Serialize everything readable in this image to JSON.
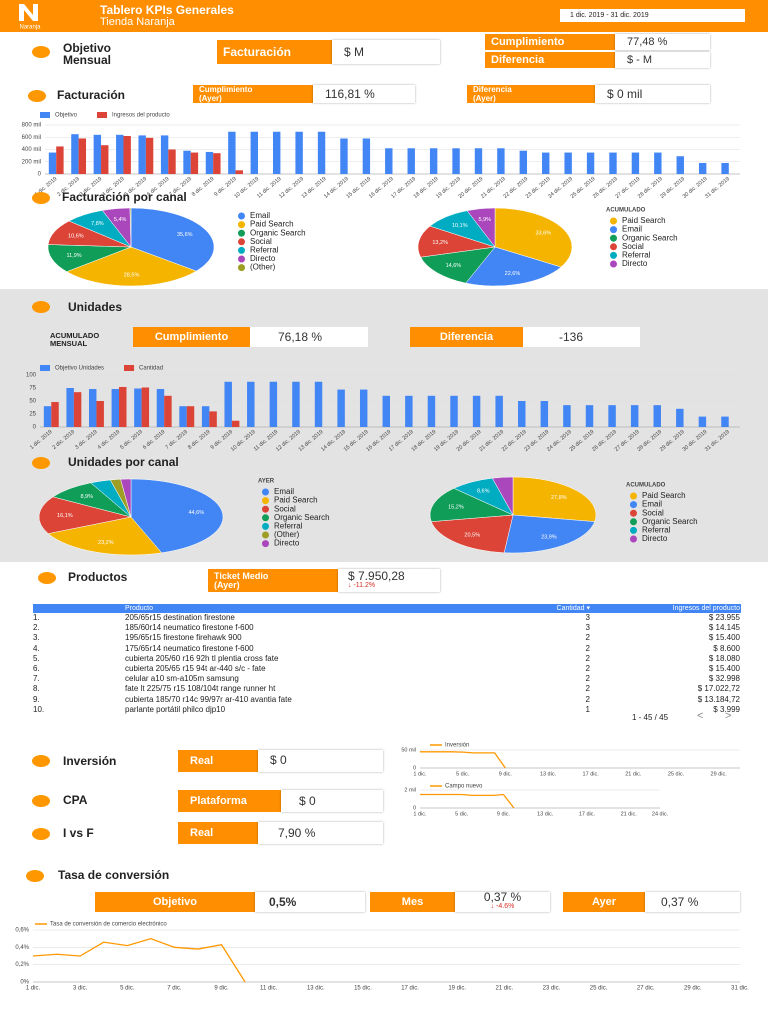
{
  "header": {
    "logo": "Naranja",
    "title": "Tablero KPIs Generales",
    "subtitle": "Tienda Naranja",
    "date_range": "1 dic. 2019 - 31 dic. 2019"
  },
  "objetivo": {
    "label": "Objetivo\nMensual",
    "facturacion_label": "Facturación",
    "facturacion_value": "$ M",
    "cumplimiento_label": "Cumplimiento",
    "cumplimiento_value": "77,48 %",
    "diferencia_label": "Diferencia",
    "diferencia_value": "$ - M"
  },
  "facturacion": {
    "label": "Facturación",
    "cumplimiento_label": "Cumplimiento\n(Ayer)",
    "cumplimiento_value": "116,81 %",
    "diferencia_label": "Diferencia\n(Ayer)",
    "diferencia_value": "$ 0 mil"
  },
  "facturacion_canal": {
    "label": "Facturación por canal"
  },
  "unidades": {
    "label": "Unidades",
    "acumulado": "ACUMULADO\nMENSUAL",
    "cumplimiento_label": "Cumplimiento",
    "cumplimiento_value": "76,18 %",
    "diferencia_label": "Diferencia",
    "diferencia_value": "-136"
  },
  "unidades_canal": {
    "label": "Unidades por canal"
  },
  "productos": {
    "label": "Productos",
    "ticket_label": "Ticket Medio\n(Ayer)",
    "ticket_value": "$ 7.950,28",
    "ticket_change": "↓ -11.2%",
    "table": {
      "columns": [
        "Producto",
        "Cantidad ▾",
        "Ingresos del producto"
      ],
      "rows": [
        [
          "1.",
          "205/65r15 destination firestone",
          3,
          "$ 23.955"
        ],
        [
          "2.",
          "185/60r14 neumatico firestone f-600",
          3,
          "$ 14.145"
        ],
        [
          "3.",
          "195/65r15 firestone firehawk 900",
          2,
          "$ 15.400"
        ],
        [
          "4.",
          "175/65r14 neumatico firestone f-600",
          2,
          "$ 8.600"
        ],
        [
          "5.",
          "cubierta 205/60 r16 92h tl plentia cross fate",
          2,
          "$ 18.080"
        ],
        [
          "6.",
          "cubierta 205/65 r15 94t ar-440 s/c - fate",
          2,
          "$ 15.400"
        ],
        [
          "7.",
          "celular a10 sm-a105m samsung",
          2,
          "$ 32.998"
        ],
        [
          "8.",
          "fate lt 225/75 r15 108/104t range runner ht",
          2,
          "$ 17.022,72"
        ],
        [
          "9.",
          "cubierta 185/70 r14c 99/97r ar-410 avantia fate",
          2,
          "$ 13.184,72"
        ],
        [
          "10.",
          "parlante portátil philco djp10",
          1,
          "$ 3.999"
        ]
      ],
      "pagination": "1 - 45 / 45"
    }
  },
  "inversion": {
    "label": "Inversión",
    "kpi_label": "Real",
    "kpi_value": "$ 0"
  },
  "cpa": {
    "label": "CPA",
    "kpi_label": "Plataforma",
    "kpi_value": "$ 0"
  },
  "ivsf": {
    "label": "I vs F",
    "kpi_label": "Real",
    "kpi_value": "7,90 %"
  },
  "tasa": {
    "label": "Tasa de conversión",
    "objetivo_label": "Objetivo",
    "objetivo_value": "0,5%",
    "mes_label": "Mes",
    "mes_value": "0,37 %",
    "mes_change": "↓ -4.6%",
    "ayer_label": "Ayer",
    "ayer_value": "0,37 %"
  },
  "chart_data": [
    {
      "type": "bar",
      "categories": [
        "1 dic. 2019",
        "2 dic. 2019",
        "3 dic. 2019",
        "4 dic. 2019",
        "5 dic. 2019",
        "6 dic. 2019",
        "7 dic. 2019",
        "8 dic. 2019",
        "9 dic. 2019",
        "10 dic. 2019",
        "11 dic. 2019",
        "12 dic. 2019",
        "13 dic. 2019",
        "14 dic. 2019",
        "15 dic. 2019",
        "16 dic. 2019",
        "17 dic. 2019",
        "18 dic. 2019",
        "19 dic. 2019",
        "20 dic. 2019",
        "21 dic. 2019",
        "22 dic. 2019",
        "23 dic. 2019",
        "24 dic. 2019",
        "25 dic. 2019",
        "26 dic. 2019",
        "27 dic. 2019",
        "28 dic. 2019",
        "29 dic. 2019",
        "30 dic. 2019",
        "31 dic. 2019"
      ],
      "series": [
        {
          "name": "Objetivo",
          "color": "#4285f4",
          "values": [
            350000,
            650000,
            640000,
            640000,
            630000,
            630000,
            380000,
            360000,
            690000,
            690000,
            690000,
            690000,
            690000,
            580000,
            580000,
            420000,
            420000,
            420000,
            420000,
            420000,
            420000,
            380000,
            350000,
            350000,
            350000,
            350000,
            350000,
            350000,
            290000,
            180000,
            180000
          ]
        },
        {
          "name": "Ingresos del producto",
          "color": "#db4437",
          "values": [
            450000,
            580000,
            470000,
            620000,
            590000,
            400000,
            350000,
            340000,
            60000,
            0,
            0,
            0,
            0,
            0,
            0,
            0,
            0,
            0,
            0,
            0,
            0,
            0,
            0,
            0,
            0,
            0,
            0,
            0,
            0,
            0,
            0
          ]
        }
      ],
      "ylim": [
        0,
        800000
      ],
      "yticks": [
        0,
        {
          "value": 200000,
          "label": "200 mil"
        },
        {
          "value": 400000,
          "label": "400 mil"
        },
        {
          "value": 600000,
          "label": "600 mil"
        },
        {
          "value": 800000,
          "label": "800 mil"
        }
      ],
      "grid": true
    },
    {
      "type": "pie",
      "categories": [
        "Email",
        "Paid Search",
        "Organic Search",
        "Social",
        "Referral",
        "Directo",
        "(Other)"
      ],
      "values": [
        35.6,
        28.5,
        11.9,
        10.6,
        7.8,
        5.4,
        0.2
      ],
      "value_labels": [
        "35,6%",
        "28,5%",
        "11,9%",
        "10,6%",
        "7,8%",
        "5,4%",
        null
      ],
      "colors": [
        "#4285f4",
        "#f4b400",
        "#0f9d58",
        "#db4437",
        "#00acc1",
        "#ab47bc",
        "#9e9d24"
      ]
    },
    {
      "type": "pie",
      "title": "ACUMULADO",
      "categories": [
        "Paid Search",
        "Email",
        "Organic Search",
        "Social",
        "Referral",
        "Directo"
      ],
      "values": [
        33.6,
        22.6,
        14.6,
        13.2,
        10.1,
        5.9
      ],
      "value_labels": [
        "33,6%",
        "22,6%",
        "14,6%",
        "13,2%",
        "10,1%",
        "5,9%"
      ],
      "colors": [
        "#f4b400",
        "#4285f4",
        "#0f9d58",
        "#db4437",
        "#00acc1",
        "#ab47bc"
      ]
    },
    {
      "type": "bar",
      "categories": [
        "1 dic. 2019",
        "2 dic. 2019",
        "3 dic. 2019",
        "4 dic. 2019",
        "5 dic. 2019",
        "6 dic. 2019",
        "7 dic. 2019",
        "8 dic. 2019",
        "9 dic. 2019",
        "10 dic. 2019",
        "11 dic. 2019",
        "12 dic. 2019",
        "13 dic. 2019",
        "14 dic. 2019",
        "15 dic. 2019",
        "16 dic. 2019",
        "17 dic. 2019",
        "18 dic. 2019",
        "19 dic. 2019",
        "20 dic. 2019",
        "21 dic. 2019",
        "22 dic. 2019",
        "23 dic. 2019",
        "24 dic. 2019",
        "25 dic. 2019",
        "26 dic. 2019",
        "27 dic. 2019",
        "28 dic. 2019",
        "29 dic. 2019",
        "30 dic. 2019",
        "31 dic. 2019"
      ],
      "series": [
        {
          "name": "Objetivo Unidades",
          "color": "#4285f4",
          "values": [
            40,
            75,
            73,
            73,
            74,
            73,
            40,
            40,
            87,
            87,
            87,
            87,
            87,
            72,
            72,
            60,
            60,
            60,
            60,
            60,
            60,
            50,
            50,
            42,
            42,
            42,
            42,
            42,
            35,
            20,
            20
          ]
        },
        {
          "name": "Cantidad",
          "color": "#db4437",
          "values": [
            48,
            67,
            50,
            77,
            76,
            60,
            40,
            30,
            12,
            0,
            0,
            0,
            0,
            0,
            0,
            0,
            0,
            0,
            0,
            0,
            0,
            0,
            0,
            0,
            0,
            0,
            0,
            0,
            0,
            0,
            0
          ]
        }
      ],
      "ylim": [
        0,
        100
      ],
      "yticks": [
        0,
        25,
        50,
        75,
        100
      ],
      "grid": true
    },
    {
      "type": "pie",
      "title": "AYER",
      "categories": [
        "Email",
        "Paid Search",
        "Social",
        "Organic Search",
        "Referral",
        "(Other)",
        "Directo"
      ],
      "values": [
        44.6,
        23.2,
        16.1,
        8.9,
        3.6,
        1.8,
        1.8
      ],
      "value_labels": [
        "44,6%",
        "23,2%",
        "16,1%",
        "8,9%",
        null,
        null,
        null
      ],
      "colors": [
        "#4285f4",
        "#f4b400",
        "#db4437",
        "#0f9d58",
        "#00acc1",
        "#9e9d24",
        "#ab47bc"
      ]
    },
    {
      "type": "pie",
      "title": "ACUMULADO",
      "categories": [
        "Paid Search",
        "Email",
        "Social",
        "Organic Search",
        "Referral",
        "Directo"
      ],
      "values": [
        27.8,
        23.9,
        20.5,
        15.2,
        8.6,
        4.0
      ],
      "value_labels": [
        "27,8%",
        "23,9%",
        "20,5%",
        "15,2%",
        "8,6%",
        null
      ],
      "colors": [
        "#f4b400",
        "#4285f4",
        "#db4437",
        "#0f9d58",
        "#00acc1",
        "#ab47bc"
      ]
    },
    {
      "type": "line",
      "categories": [
        "1 dic.",
        null,
        null,
        null,
        "5 dic.",
        null,
        null,
        null,
        "9 dic.",
        null,
        null,
        null,
        "13 dic.",
        null,
        null,
        null,
        "17 dic.",
        null,
        null,
        null,
        "21 dic.",
        null,
        null,
        null,
        "25 dic.",
        null,
        null,
        null,
        "29 dic.",
        null,
        null
      ],
      "series": [
        {
          "name": "Inversión",
          "color": "#ff9800",
          "values": [
            45000,
            45000,
            45000,
            45000,
            44000,
            42000,
            42000,
            42000,
            0,
            null,
            null,
            null,
            null,
            null,
            null,
            null,
            null,
            null,
            null,
            null,
            null,
            null,
            null,
            null,
            null,
            null,
            null,
            null,
            null,
            null,
            null
          ]
        }
      ],
      "ylim": [
        0,
        50000
      ],
      "yticks": [
        0,
        {
          "value": 50000,
          "label": "50 mil"
        }
      ],
      "grid": true
    },
    {
      "type": "line",
      "categories": [
        "1 dic.",
        null,
        null,
        null,
        "5 dic.",
        null,
        null,
        null,
        "9 dic.",
        null,
        null,
        null,
        "13 dic.",
        null,
        null,
        null,
        "17 dic.",
        null,
        null,
        null,
        "21 dic.",
        null,
        null,
        "24 dic."
      ],
      "series": [
        {
          "name": "Campo nuevo",
          "color": "#ff9800",
          "values": [
            1500,
            1500,
            1500,
            1500,
            1500,
            1400,
            1400,
            1400,
            1500,
            0,
            null,
            null,
            null,
            null,
            null,
            null,
            null,
            null,
            null,
            null,
            null,
            null,
            null,
            null
          ]
        }
      ],
      "ylim": [
        0,
        2000
      ],
      "yticks": [
        0,
        {
          "value": 2000,
          "label": "2 mil"
        }
      ],
      "grid": true
    },
    {
      "type": "line",
      "categories": [
        "1 dic.",
        null,
        "3 dic.",
        null,
        "5 dic.",
        null,
        "7 dic.",
        null,
        "9 dic.",
        null,
        "11 dic.",
        null,
        "13 dic.",
        null,
        "15 dic.",
        null,
        "17 dic.",
        null,
        "19 dic.",
        null,
        "21 dic.",
        null,
        "23 dic.",
        null,
        "25 dic.",
        null,
        "27 dic.",
        null,
        "29 dic.",
        null,
        "31 dic."
      ],
      "series": [
        {
          "name": "Tasa de conversión de comercio electrónico",
          "color": "#ff9800",
          "values": [
            0.3,
            0.32,
            0.3,
            0.46,
            0.42,
            0.5,
            0.4,
            0.38,
            0.43,
            0,
            null,
            null,
            null,
            null,
            null,
            null,
            null,
            null,
            null,
            null,
            null,
            null,
            null,
            null,
            null,
            null,
            null,
            null,
            null,
            null,
            null
          ]
        }
      ],
      "ylim": [
        0,
        0.6
      ],
      "yticks": [
        {
          "value": 0,
          "label": "0%"
        },
        {
          "value": 0.2,
          "label": "0,2%"
        },
        {
          "value": 0.4,
          "label": "0,4%"
        },
        {
          "value": 0.6,
          "label": "0,6%"
        }
      ],
      "grid": true
    }
  ]
}
